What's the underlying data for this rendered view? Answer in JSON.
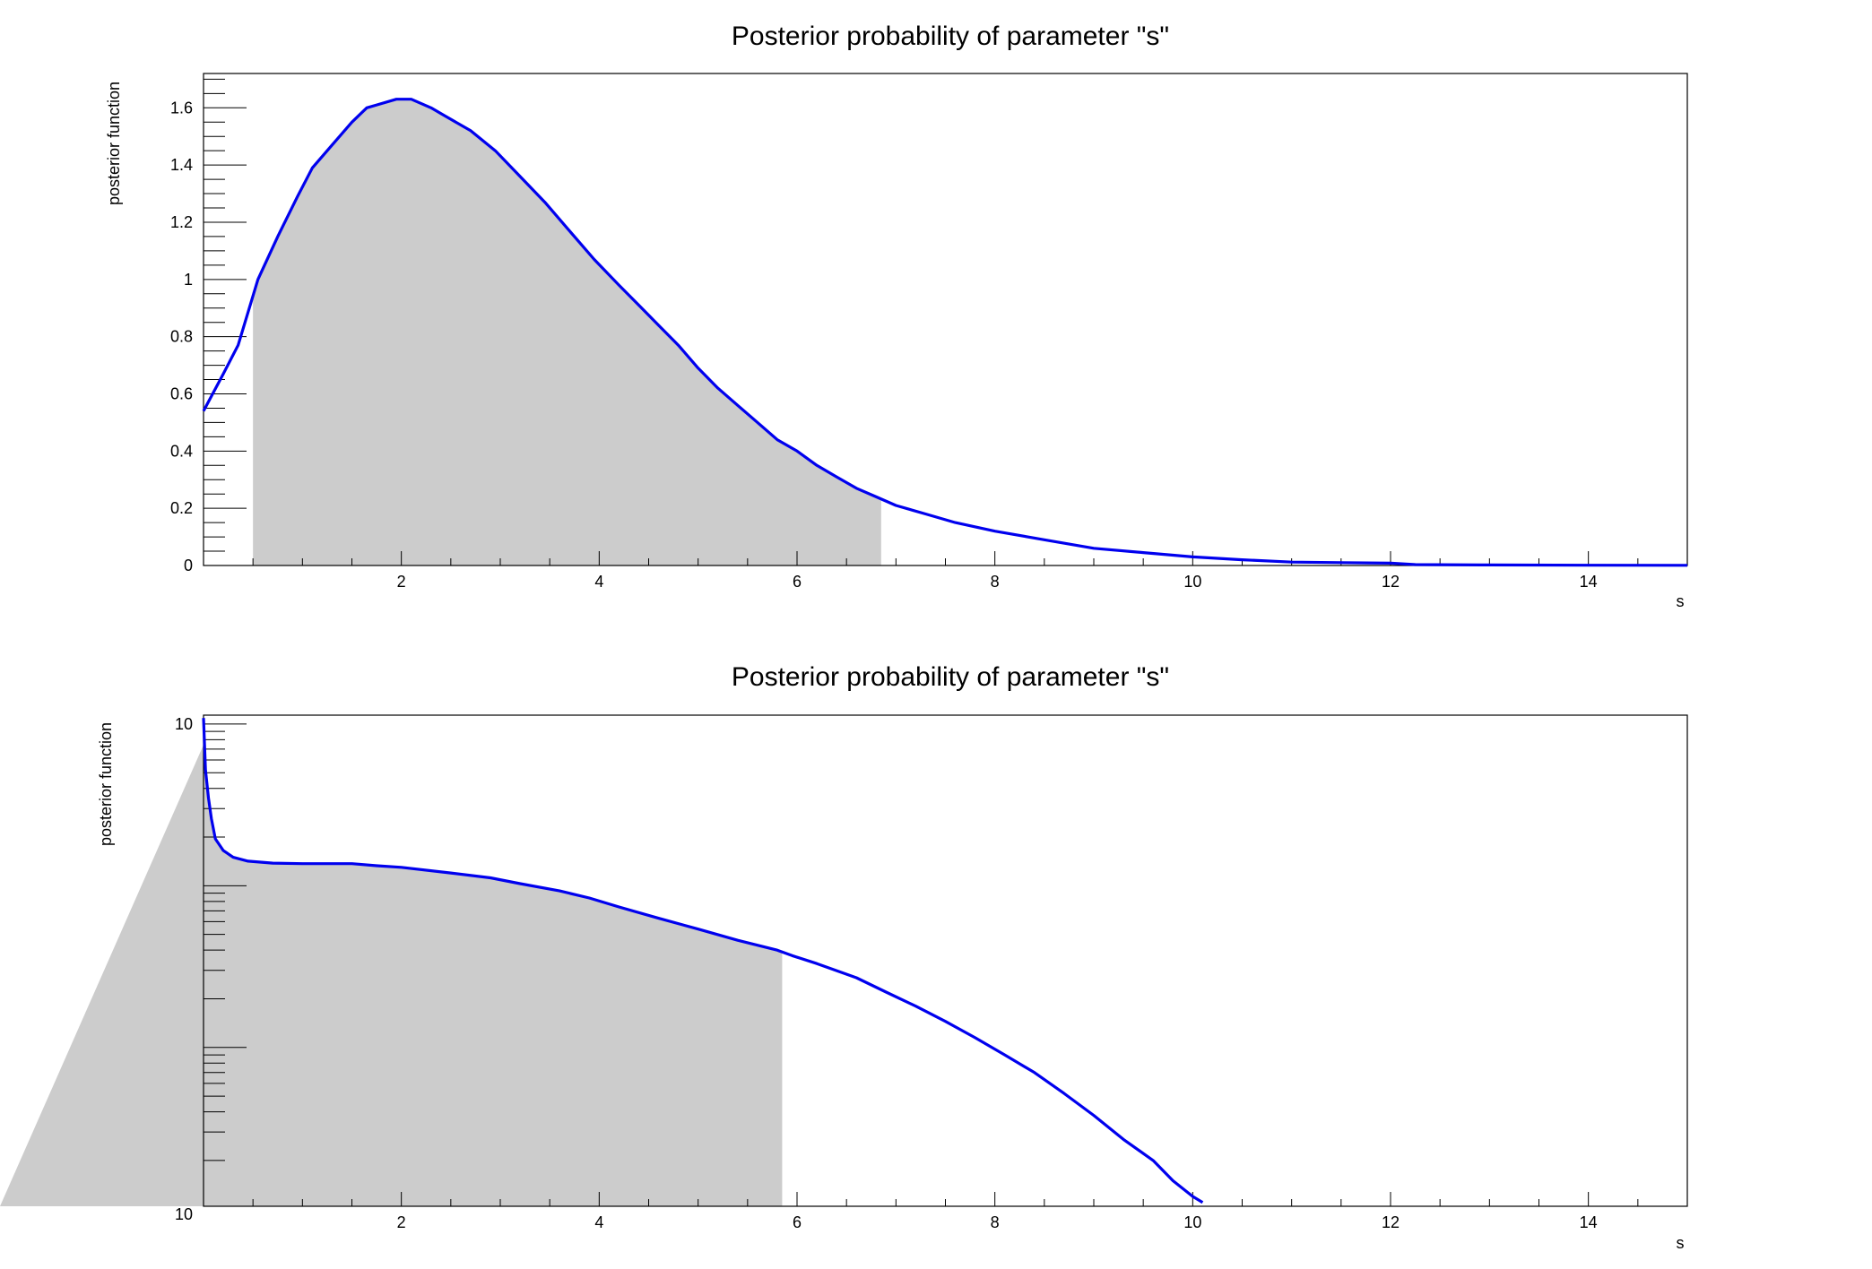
{
  "chart_data": [
    {
      "type": "area",
      "title": "Posterior probability of parameter \"s\"",
      "xlabel": "s",
      "ylabel": "posterior function",
      "xlim": [
        0,
        15
      ],
      "ylim": [
        0,
        1.72
      ],
      "yscale": "linear",
      "grid": false,
      "x_ticks": [
        "2",
        "4",
        "6",
        "8",
        "10",
        "12",
        "14"
      ],
      "y_ticks": [
        "0",
        "0.2",
        "0.4",
        "0.6",
        "0.8",
        "1",
        "1.2",
        "1.4",
        "1.6"
      ],
      "series": [
        {
          "x": [
            0,
            0.2,
            0.35,
            0.55,
            0.75,
            0.95,
            1.1,
            1.3,
            1.5,
            1.65,
            1.75,
            1.95,
            2.1,
            2.3,
            2.45,
            2.7,
            2.95,
            3.2,
            3.45,
            3.7,
            3.95,
            4.2,
            4.4,
            4.6,
            4.8,
            5.0,
            5.2,
            5.4,
            5.6,
            5.8,
            6.0,
            6.2,
            6.4,
            6.6,
            6.8,
            7.0,
            7.3,
            7.6,
            8.0,
            8.5,
            9.0,
            9.5,
            10.0,
            10.5,
            11.0,
            11.5,
            12.0,
            12.25,
            13.0,
            14.0,
            15.0
          ],
          "y": [
            0.54,
            0.67,
            0.77,
            1.0,
            1.15,
            1.29,
            1.39,
            1.47,
            1.55,
            1.6,
            1.61,
            1.63,
            1.63,
            1.6,
            1.57,
            1.52,
            1.45,
            1.36,
            1.27,
            1.17,
            1.07,
            0.98,
            0.91,
            0.84,
            0.77,
            0.69,
            0.62,
            0.56,
            0.5,
            0.44,
            0.4,
            0.35,
            0.31,
            0.27,
            0.24,
            0.21,
            0.18,
            0.15,
            0.12,
            0.09,
            0.06,
            0.045,
            0.03,
            0.02,
            0.012,
            0.01,
            0.008,
            0.003,
            0.002,
            0.001,
            0.0005
          ]
        }
      ],
      "shaded_interval": [
        0.5,
        6.85
      ]
    },
    {
      "type": "area",
      "title": "Posterior probability of parameter \"s\"",
      "xlabel": "s",
      "ylabel": "posterior function",
      "xlim": [
        0,
        15
      ],
      "yscale": "log",
      "grid": false,
      "x_ticks": [
        "2",
        "4",
        "6",
        "8",
        "10",
        "12",
        "14"
      ],
      "y_ticks": [
        "10",
        "10"
      ],
      "series": [
        {
          "x": [
            0,
            0.02,
            0.05,
            0.08,
            0.12,
            0.2,
            0.3,
            0.45,
            0.7,
            1.0,
            1.5,
            1.75,
            2.0,
            2.5,
            2.9,
            3.2,
            3.6,
            3.9,
            4.2,
            4.6,
            5.0,
            5.4,
            5.8,
            5.95,
            6.2,
            6.6,
            6.9,
            7.2,
            7.5,
            7.8,
            8.1,
            8.4,
            8.7,
            9.0,
            9.3,
            9.6,
            9.8,
            10.0,
            10.1
          ],
          "y": [
            10.9,
            5.2,
            3.5,
            2.6,
            1.95,
            1.65,
            1.5,
            1.42,
            1.38,
            1.37,
            1.37,
            1.33,
            1.3,
            1.2,
            1.12,
            1.03,
            0.93,
            0.84,
            0.74,
            0.63,
            0.54,
            0.46,
            0.4,
            0.37,
            0.33,
            0.27,
            0.22,
            0.18,
            0.145,
            0.115,
            0.09,
            0.07,
            0.052,
            0.038,
            0.027,
            0.02,
            0.015,
            0.012,
            0.011
          ]
        }
      ],
      "shaded_interval": [
        0,
        5.85
      ]
    }
  ]
}
